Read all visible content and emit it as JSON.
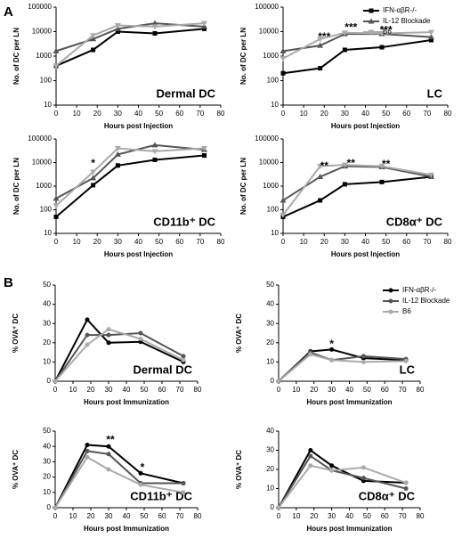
{
  "panel_labels": [
    "A",
    "B"
  ],
  "chart_data": [
    {
      "type": "line",
      "title": "Dermal DC",
      "x_label": "Hours post Injection",
      "y_label": "No. of DC per LN",
      "ylog": true,
      "x": [
        0,
        18,
        30,
        48,
        72
      ],
      "xlim": [
        0,
        80
      ],
      "xticks": [
        0,
        10,
        20,
        30,
        40,
        50,
        60,
        70,
        80
      ],
      "ylim": [
        10,
        100000
      ],
      "yticks": [
        10,
        100,
        1000,
        10000,
        100000
      ],
      "series": [
        {
          "name": "IFN-αβR-/-",
          "color": "#000000",
          "marker": "square",
          "values": [
            400,
            1800,
            10000,
            8500,
            13000
          ]
        },
        {
          "name": "IL-12 Blockade",
          "color": "#555555",
          "marker": "triangle",
          "values": [
            1600,
            5000,
            13000,
            22000,
            16000
          ]
        },
        {
          "name": "B6",
          "color": "#aaaaaa",
          "marker": "triangle-down",
          "values": [
            400,
            7000,
            18000,
            16000,
            22000
          ]
        }
      ]
    },
    {
      "type": "line",
      "title": "LC",
      "x_label": "Hours post Injection",
      "y_label": "No. of DC per LN",
      "ylog": true,
      "legend": "outside-right",
      "x": [
        0,
        18,
        30,
        48,
        72
      ],
      "xlim": [
        0,
        80
      ],
      "xticks": [
        0,
        10,
        20,
        30,
        40,
        50,
        60,
        70,
        80
      ],
      "ylim": [
        10,
        100000
      ],
      "yticks": [
        10,
        100,
        1000,
        10000,
        100000
      ],
      "series": [
        {
          "name": "IFN-αβR-/-",
          "color": "#000000",
          "marker": "square",
          "values": [
            200,
            320,
            1800,
            2300,
            4500
          ]
        },
        {
          "name": "IL-12 Blockade",
          "color": "#555555",
          "marker": "triangle",
          "values": [
            1600,
            2700,
            8000,
            8000,
            6000
          ]
        },
        {
          "name": "B6",
          "color": "#aaaaaa",
          "marker": "triangle-down",
          "values": [
            800,
            5000,
            9000,
            8500,
            9500
          ]
        }
      ],
      "annotations": [
        {
          "text": "***",
          "x": 20,
          "y": 6000
        },
        {
          "text": "***",
          "x": 33,
          "y": 14000
        },
        {
          "text": "***",
          "x": 50,
          "y": 11000
        }
      ]
    },
    {
      "type": "line",
      "title": "CD11b⁺ DC",
      "x_label": "Hours post Injection",
      "y_label": "No. of DC per LN",
      "ylog": true,
      "x": [
        0,
        18,
        30,
        48,
        72
      ],
      "xlim": [
        0,
        80
      ],
      "xticks": [
        0,
        10,
        20,
        30,
        40,
        50,
        60,
        70,
        80
      ],
      "ylim": [
        10,
        100000
      ],
      "yticks": [
        10,
        100,
        1000,
        10000,
        100000
      ],
      "series": [
        {
          "name": "IFN-αβR-/-",
          "color": "#000000",
          "marker": "square",
          "values": [
            50,
            1100,
            7500,
            13000,
            20000
          ]
        },
        {
          "name": "IL-12 Blockade",
          "color": "#555555",
          "marker": "triangle",
          "values": [
            300,
            2200,
            22000,
            55000,
            35000
          ]
        },
        {
          "name": "B6",
          "color": "#aaaaaa",
          "marker": "triangle-down",
          "values": [
            150,
            4000,
            40000,
            30000,
            40000
          ]
        }
      ],
      "annotations": [
        {
          "text": "*",
          "x": 18,
          "y": 9000
        }
      ]
    },
    {
      "type": "line",
      "title": "CD8α⁺ DC",
      "x_label": "Hours post Injection",
      "y_label": "No. of DC per LN",
      "ylog": true,
      "x": [
        0,
        18,
        30,
        48,
        72
      ],
      "xlim": [
        0,
        80
      ],
      "xticks": [
        0,
        10,
        20,
        30,
        40,
        50,
        60,
        70,
        80
      ],
      "ylim": [
        10,
        100000
      ],
      "yticks": [
        10,
        100,
        1000,
        10000,
        100000
      ],
      "series": [
        {
          "name": "IFN-αβR-/-",
          "color": "#000000",
          "marker": "square",
          "values": [
            50,
            250,
            1200,
            1500,
            2500
          ]
        },
        {
          "name": "IL-12 Blockade",
          "color": "#555555",
          "marker": "triangle",
          "values": [
            250,
            2500,
            7000,
            6500,
            2500
          ]
        },
        {
          "name": "B6",
          "color": "#aaaaaa",
          "marker": "triangle-down",
          "values": [
            60,
            7000,
            8000,
            7000,
            3000
          ]
        }
      ],
      "annotations": [
        {
          "text": "**",
          "x": 20,
          "y": 7000
        },
        {
          "text": "**",
          "x": 33,
          "y": 9000
        },
        {
          "text": "**",
          "x": 50,
          "y": 8000
        }
      ]
    },
    {
      "type": "line",
      "title": "Dermal DC",
      "x_label": "Hours post Immunization",
      "y_label": "% OVA⁺ DC",
      "x": [
        0,
        18,
        30,
        48,
        72
      ],
      "xlim": [
        0,
        80
      ],
      "xticks": [
        0,
        10,
        20,
        30,
        40,
        50,
        60,
        70,
        80
      ],
      "ylim": [
        0,
        50
      ],
      "yticks": [
        0,
        10,
        20,
        30,
        40,
        50
      ],
      "series": [
        {
          "name": "IFN-αβR-/-",
          "color": "#000000",
          "marker": "circle",
          "values": [
            0,
            32,
            20,
            20.5,
            10
          ]
        },
        {
          "name": "IL-12 Blockade",
          "color": "#555555",
          "marker": "circle",
          "values": [
            0,
            24,
            24,
            25,
            13
          ]
        },
        {
          "name": "B6",
          "color": "#aaaaaa",
          "marker": "circle",
          "values": [
            0,
            19,
            27,
            22,
            11
          ]
        }
      ]
    },
    {
      "type": "line",
      "title": "LC",
      "x_label": "Hours post Immunization",
      "y_label": "% OVA⁺ DC",
      "legend": "outside-right",
      "x": [
        0,
        18,
        30,
        48,
        72
      ],
      "xlim": [
        0,
        80
      ],
      "xticks": [
        0,
        10,
        20,
        30,
        40,
        50,
        60,
        70,
        80
      ],
      "ylim": [
        0,
        50
      ],
      "yticks": [
        0,
        10,
        20,
        30,
        40,
        50
      ],
      "series": [
        {
          "name": "IFN-αβR-/-",
          "color": "#000000",
          "marker": "circle",
          "values": [
            0,
            15.5,
            16.5,
            12,
            11
          ]
        },
        {
          "name": "IL-12 Blockade",
          "color": "#555555",
          "marker": "circle",
          "values": [
            0,
            15,
            11,
            13,
            11.5
          ]
        },
        {
          "name": "B6",
          "color": "#aaaaaa",
          "marker": "circle",
          "values": [
            0,
            14,
            11,
            10,
            10.5
          ]
        }
      ],
      "annotations": [
        {
          "text": "*",
          "x": 30,
          "y": 19
        }
      ]
    },
    {
      "type": "line",
      "title": "CD11b⁺ DC",
      "x_label": "Hours post Immunization",
      "y_label": "% OVA⁺ DC",
      "x": [
        0,
        18,
        30,
        48,
        72
      ],
      "xlim": [
        0,
        80
      ],
      "xticks": [
        0,
        10,
        20,
        30,
        40,
        50,
        60,
        70,
        80
      ],
      "ylim": [
        0,
        50
      ],
      "yticks": [
        0,
        10,
        20,
        30,
        40,
        50
      ],
      "series": [
        {
          "name": "IFN-αβR-/-",
          "color": "#000000",
          "marker": "circle",
          "values": [
            0,
            41,
            40,
            22.5,
            16
          ]
        },
        {
          "name": "IL-12 Blockade",
          "color": "#555555",
          "marker": "circle",
          "values": [
            0,
            37,
            35,
            16,
            16
          ]
        },
        {
          "name": "B6",
          "color": "#aaaaaa",
          "marker": "circle",
          "values": [
            0,
            33,
            25,
            15,
            10
          ]
        }
      ],
      "annotations": [
        {
          "text": "**",
          "x": 31,
          "y": 44
        },
        {
          "text": "*",
          "x": 49,
          "y": 26
        }
      ]
    },
    {
      "type": "line",
      "title": "CD8α⁺ DC",
      "x_label": "Hours post Immunization",
      "y_label": "% OVA⁺ DC",
      "x": [
        0,
        18,
        30,
        48,
        72
      ],
      "xlim": [
        0,
        80
      ],
      "xticks": [
        0,
        10,
        20,
        30,
        40,
        50,
        60,
        70,
        80
      ],
      "ylim": [
        0,
        40
      ],
      "yticks": [
        0,
        10,
        20,
        30,
        40
      ],
      "series": [
        {
          "name": "IFN-αβR-/-",
          "color": "#000000",
          "marker": "circle",
          "values": [
            0,
            30,
            22,
            14,
            13
          ]
        },
        {
          "name": "IL-12 Blockade",
          "color": "#555555",
          "marker": "circle",
          "values": [
            0,
            27,
            19.5,
            15.5,
            10
          ]
        },
        {
          "name": "B6",
          "color": "#aaaaaa",
          "marker": "circle",
          "values": [
            0,
            22,
            19.5,
            21,
            13
          ]
        }
      ]
    }
  ]
}
